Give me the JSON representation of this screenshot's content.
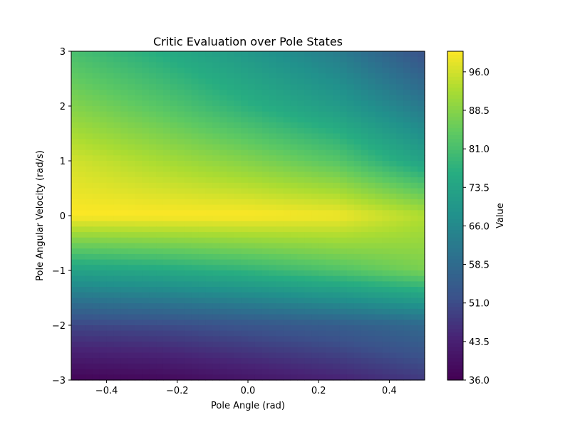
{
  "chart_data": {
    "type": "heatmap",
    "title": "Critic Evaluation over Pole States",
    "xlabel": "Pole Angle (rad)",
    "ylabel": "Pole Angular Velocity (rad/s)",
    "xlim": [
      -0.5,
      0.5
    ],
    "ylim": [
      -3,
      3
    ],
    "x_ticks": [
      -0.4,
      -0.2,
      0.0,
      0.2,
      0.4
    ],
    "x_tick_labels": [
      "−0.4",
      "−0.2",
      "0.0",
      "0.2",
      "0.4"
    ],
    "y_ticks": [
      -3,
      -2,
      -1,
      0,
      1,
      2,
      3
    ],
    "y_tick_labels": [
      "−3",
      "−2",
      "−1",
      "0",
      "1",
      "2",
      "3"
    ],
    "colormap": "viridis",
    "colorbar": {
      "label": "Value",
      "range": [
        36.0,
        100.0
      ],
      "ticks": [
        36.0,
        43.5,
        51.0,
        58.5,
        66.0,
        73.5,
        81.0,
        88.5,
        96.0
      ],
      "tick_labels": [
        "36.0",
        "43.5",
        "51.0",
        "58.5",
        "66.0",
        "73.5",
        "81.0",
        "88.5",
        "96.0"
      ]
    },
    "grid_x": [
      -0.5,
      -0.25,
      0.0,
      0.25,
      0.5
    ],
    "grid_y": [
      -3,
      -2,
      -1,
      0,
      1,
      2,
      3
    ],
    "values": [
      [
        37,
        38,
        41,
        44,
        48
      ],
      [
        50,
        51,
        53,
        55,
        58
      ],
      [
        73,
        75,
        78,
        82,
        87
      ],
      [
        100,
        100,
        100,
        99,
        93
      ],
      [
        96,
        92,
        88,
        83,
        73
      ],
      [
        88,
        83,
        77,
        71,
        62
      ],
      [
        81,
        76,
        70,
        63,
        52
      ]
    ]
  }
}
